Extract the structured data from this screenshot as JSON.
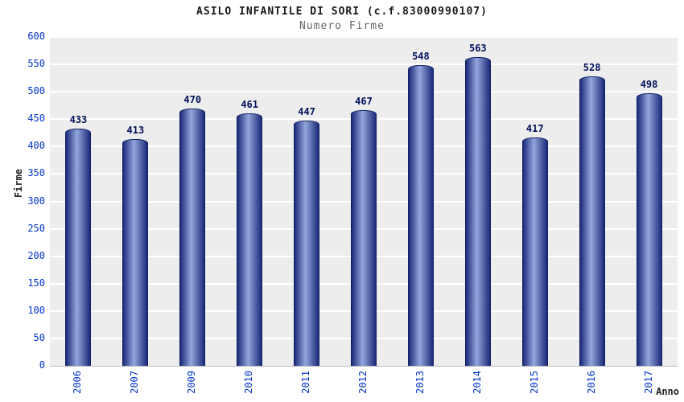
{
  "chart_data": {
    "type": "bar",
    "title": "ASILO INFANTILE DI SORI (c.f.83000990107)",
    "subtitle": "Numero Firme",
    "xlabel": "Anno",
    "ylabel": "Firme",
    "categories": [
      "2006",
      "2007",
      "2009",
      "2010",
      "2011",
      "2012",
      "2013",
      "2014",
      "2015",
      "2016",
      "2017"
    ],
    "values": [
      433,
      413,
      470,
      461,
      447,
      467,
      548,
      563,
      417,
      528,
      498
    ],
    "ylim": [
      0,
      600
    ],
    "ytick_step": 50,
    "grid": "horizontal white gridlines on light gray plot background",
    "legend_position": "none",
    "colors": {
      "bar_edge": "#1c2a7a",
      "bar_center": "#93a6dc",
      "bar_outline": "#10205f",
      "tick_label": "#0033cc",
      "value_label": "#00105a",
      "plot_background": "#ededed",
      "gridline": "#ffffff",
      "title": "#1a1a1a",
      "subtitle": "#666666"
    }
  }
}
